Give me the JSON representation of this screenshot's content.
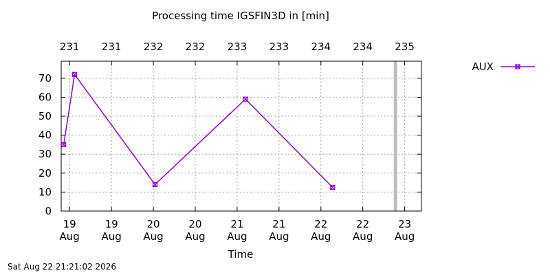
{
  "chart_data": {
    "type": "line",
    "title": "Processing time IGSFIN3D in [min]",
    "xlabel": "Time",
    "ylabel": "",
    "ylim": [
      0,
      79
    ],
    "y_ticks": [
      0,
      10,
      20,
      30,
      40,
      50,
      60,
      70
    ],
    "xlim": [
      18.8,
      23.1
    ],
    "x_ticks": [
      {
        "x": 18.9,
        "day": "19",
        "month": "Aug"
      },
      {
        "x": 19.4,
        "day": "19",
        "month": "Aug"
      },
      {
        "x": 19.9,
        "day": "20",
        "month": "Aug"
      },
      {
        "x": 20.4,
        "day": "20",
        "month": "Aug"
      },
      {
        "x": 20.9,
        "day": "21",
        "month": "Aug"
      },
      {
        "x": 21.4,
        "day": "21",
        "month": "Aug"
      },
      {
        "x": 21.9,
        "day": "22",
        "month": "Aug"
      },
      {
        "x": 22.4,
        "day": "22",
        "month": "Aug"
      },
      {
        "x": 22.9,
        "day": "23",
        "month": "Aug"
      }
    ],
    "x2_ticks": [
      {
        "x": 18.9,
        "label": "231"
      },
      {
        "x": 19.4,
        "label": "231"
      },
      {
        "x": 19.9,
        "label": "232"
      },
      {
        "x": 20.4,
        "label": "232"
      },
      {
        "x": 20.9,
        "label": "233"
      },
      {
        "x": 21.4,
        "label": "233"
      },
      {
        "x": 21.9,
        "label": "234"
      },
      {
        "x": 22.4,
        "label": "234"
      },
      {
        "x": 22.9,
        "label": "235"
      }
    ],
    "grid": true,
    "legend_position": "top-right outside",
    "now_marker_x": 22.79,
    "series": [
      {
        "name": "AUX",
        "color": "#9400d3",
        "marker": "x-square",
        "points": [
          {
            "x": 18.83,
            "y": 35
          },
          {
            "x": 18.96,
            "y": 72
          },
          {
            "x": 19.92,
            "y": 14
          },
          {
            "x": 21.0,
            "y": 59
          },
          {
            "x": 22.04,
            "y": 12.5
          }
        ]
      }
    ]
  },
  "timestamp": "Sat Aug 22 21:21:02 2026"
}
